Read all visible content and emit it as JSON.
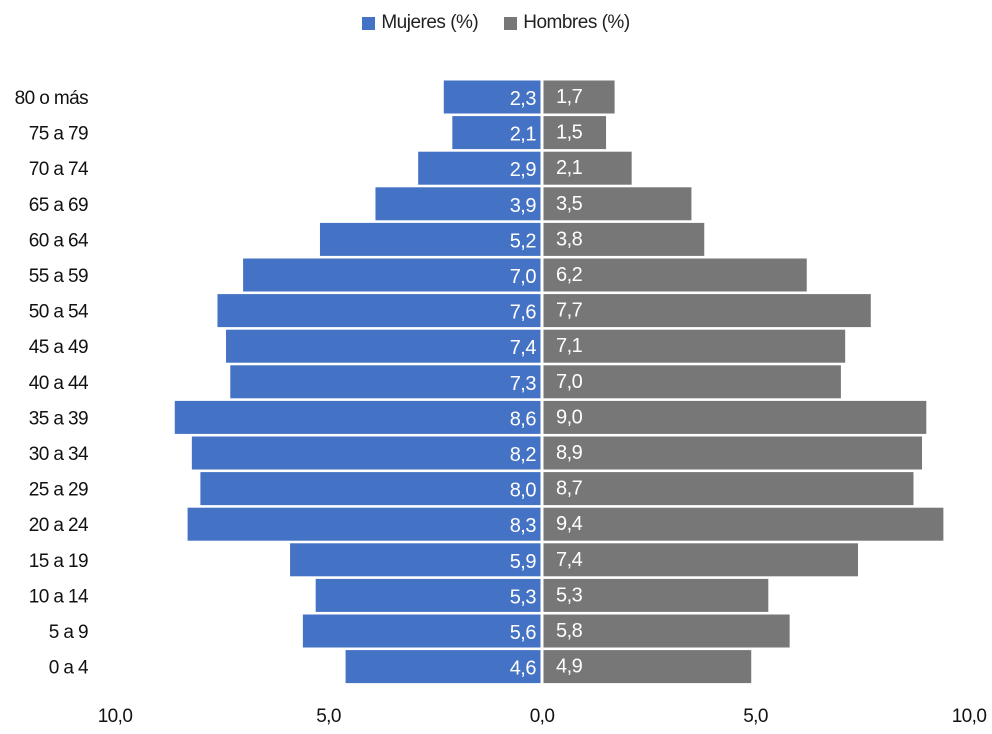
{
  "chart_data": {
    "type": "bar",
    "orientation": "horizontal",
    "layout": "population-pyramid",
    "categories": [
      "80 o más",
      "75 a 79",
      "70 a 74",
      "65 a 69",
      "60 a 64",
      "55 a 59",
      "50 a 54",
      "45 a 49",
      "40 a 44",
      "35 a 39",
      "30 a 34",
      "25 a 29",
      "20 a 24",
      "15 a 19",
      "10 a 14",
      "5 a 9",
      "0 a 4"
    ],
    "series": [
      {
        "name": "Mujeres (%)",
        "side": "left",
        "color": "#4472c4",
        "values": [
          2.3,
          2.1,
          2.9,
          3.9,
          5.2,
          7.0,
          7.6,
          7.4,
          7.3,
          8.6,
          8.2,
          8.0,
          8.3,
          5.9,
          5.3,
          5.6,
          4.6
        ],
        "labels": [
          "2,3",
          "2,1",
          "2,9",
          "3,9",
          "5,2",
          "7,0",
          "7,6",
          "7,4",
          "7,3",
          "8,6",
          "8,2",
          "8,0",
          "8,3",
          "5,9",
          "5,3",
          "5,6",
          "4,6"
        ]
      },
      {
        "name": "Hombres (%)",
        "side": "right",
        "color": "#777777",
        "values": [
          1.7,
          1.5,
          2.1,
          3.5,
          3.8,
          6.2,
          7.7,
          7.1,
          7.0,
          9.0,
          8.9,
          8.7,
          9.4,
          7.4,
          5.3,
          5.8,
          4.9
        ],
        "labels": [
          "1,7",
          "1,5",
          "2,1",
          "3,5",
          "3,8",
          "6,2",
          "7,7",
          "7,1",
          "7,0",
          "9,0",
          "8,9",
          "8,7",
          "9,4",
          "7,4",
          "5,3",
          "5,8",
          "4,9"
        ]
      }
    ],
    "xlim": [
      -10,
      10
    ],
    "x_ticks": [
      -10,
      -5,
      0,
      5,
      10
    ],
    "x_tick_labels": [
      "10,0",
      "5,0",
      "0,0",
      "5,0",
      "10,0"
    ],
    "legend_position": "top-center",
    "grid": false,
    "title": "",
    "xlabel": "",
    "ylabel": ""
  }
}
